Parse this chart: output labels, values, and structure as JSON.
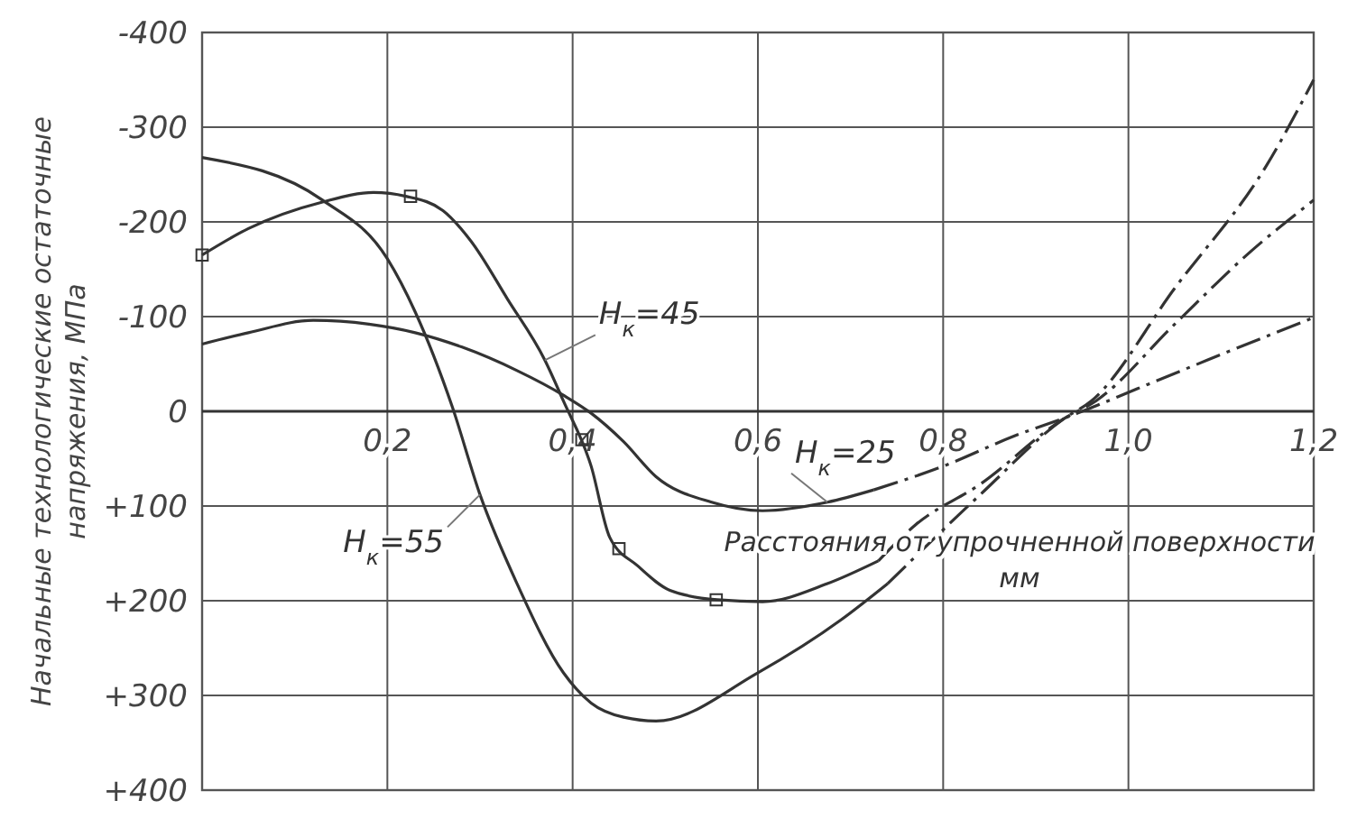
{
  "chart_data": {
    "type": "line",
    "xlabel": "Расстояния от упрочненной поверхности мм",
    "ylabel": "Начальные технологические остаточные напряжения, МПа",
    "xlim": [
      0,
      1.2
    ],
    "ylim": [
      400,
      -400
    ],
    "xticks": [
      {
        "value": 0.2,
        "label": "0,2"
      },
      {
        "value": 0.4,
        "label": "0,4"
      },
      {
        "value": 0.6,
        "label": "0,6"
      },
      {
        "value": 0.8,
        "label": "0,8"
      },
      {
        "value": 1.0,
        "label": "1,0"
      },
      {
        "value": 1.2,
        "label": "1,2"
      }
    ],
    "yticks": [
      -400,
      -300,
      -200,
      -100,
      0,
      {
        "value": 100,
        "label": "+100"
      },
      {
        "value": 200,
        "label": "+200"
      },
      {
        "value": 300,
        "label": "+300"
      },
      {
        "value": 400,
        "label": "+400"
      }
    ],
    "grid": true,
    "series": [
      {
        "name": "H$_{к}$=55",
        "color": "#333333",
        "line_style": "solid",
        "x": [
          0,
          0.13,
          0.2,
          0.23,
          0.27,
          0.3,
          0.34,
          0.39,
          0.42,
          0.455,
          0.49,
          0.6,
          0.69,
          0.74
        ],
        "values": [
          -268,
          -223,
          -161,
          -105,
          -5,
          88,
          182,
          276,
          308,
          323,
          327,
          276,
          220,
          182
        ]
      },
      {
        "color": "#333333",
        "line_style": "dashed",
        "x": [
          0.74,
          0.84,
          0.93,
          0.96,
          1.05,
          1.15,
          1.2
        ],
        "values": [
          182,
          88,
          8,
          -11,
          -130,
          -261,
          -350
        ]
      },
      {
        "name": "H$_{к}$=45",
        "color": "#333333",
        "line_style": "solid",
        "x": [
          0,
          0.05,
          0.13,
          0.185,
          0.22,
          0.26,
          0.29,
          0.33,
          0.37,
          0.39,
          0.42,
          0.44,
          0.47,
          0.505,
          0.556,
          0.605,
          0.675,
          0.73
        ],
        "values": [
          -165,
          -193,
          -221,
          -231,
          -227,
          -212,
          -180,
          -118,
          -54,
          -11,
          58,
          133,
          163,
          189,
          199,
          201,
          182,
          158
        ]
      },
      {
        "color": "#333333",
        "line_style": "dashed",
        "x": [
          0.73,
          0.77,
          0.84,
          0.93,
          0.965,
          1.05,
          1.13,
          1.2
        ],
        "values": [
          158,
          120,
          77,
          8,
          -11,
          -92,
          -167,
          -223
        ]
      },
      {
        "name": "H$_{к}$=25",
        "color": "#333333",
        "line_style": "solid",
        "x": [
          0,
          0.05,
          0.12,
          0.18,
          0.23,
          0.28,
          0.34,
          0.39,
          0.42,
          0.455,
          0.49,
          0.55,
          0.605,
          0.675,
          0.725
        ],
        "values": [
          -71,
          -83,
          -96,
          -92,
          -83,
          -68,
          -43,
          -17,
          2,
          32,
          69,
          96,
          105,
          96,
          83
        ]
      },
      {
        "color": "#333333",
        "line_style": "dashed",
        "x": [
          0.725,
          0.8,
          0.877,
          0.945,
          1.01,
          1.085,
          1.2
        ],
        "values": [
          83,
          58,
          26,
          2,
          -24,
          -54,
          -99
        ]
      },
      {
        "type": "scatter",
        "marker": "square",
        "color": "#333333",
        "x": [
          0,
          0.225,
          0.41,
          0.45,
          0.555
        ],
        "values": [
          -165,
          -227,
          30,
          145,
          199
        ]
      }
    ]
  }
}
